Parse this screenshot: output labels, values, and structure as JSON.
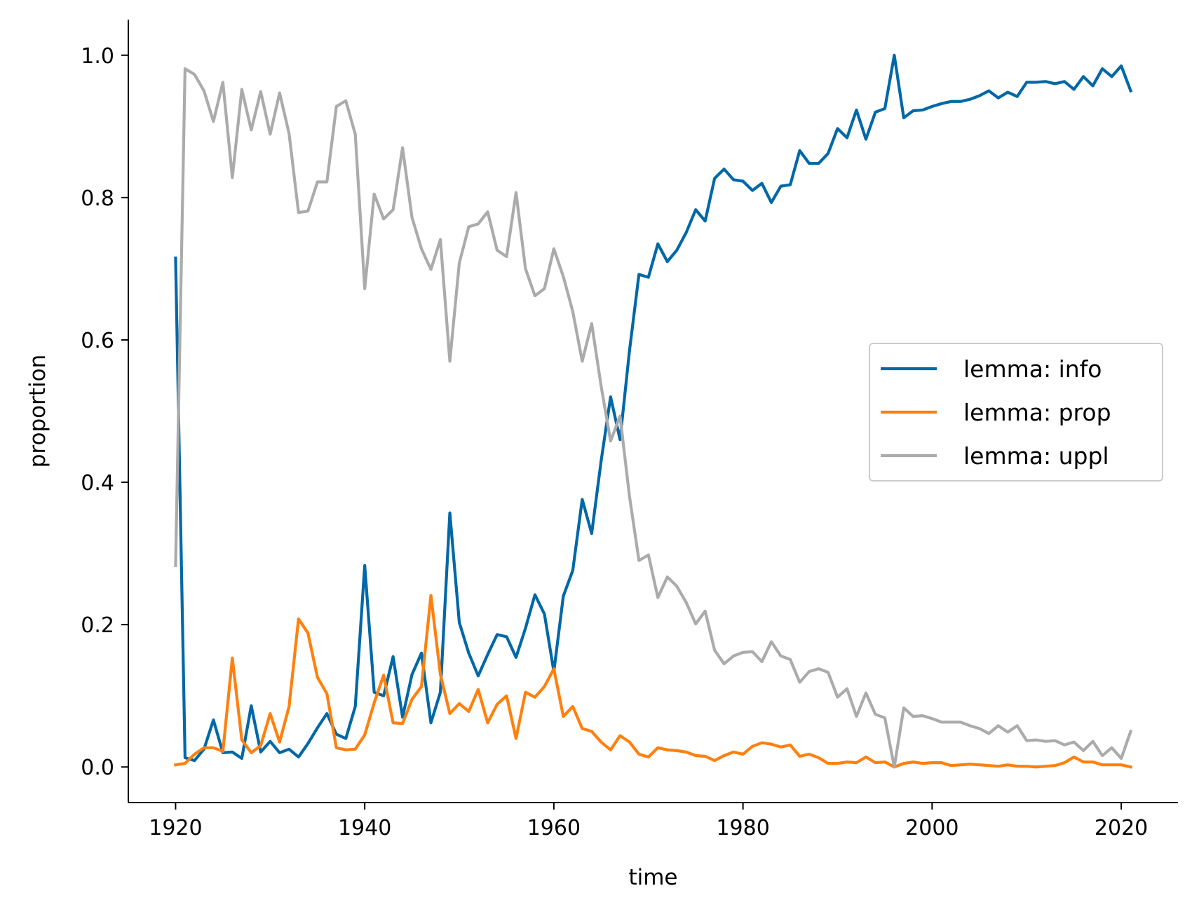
{
  "chart_data": {
    "type": "line",
    "xlabel": "time",
    "ylabel": "proportion",
    "xlim": [
      1915,
      2026
    ],
    "ylim": [
      -0.05,
      1.05
    ],
    "xticks": [
      1920,
      1940,
      1960,
      1980,
      2000,
      2020
    ],
    "yticks": [
      "0.0",
      "0.2",
      "0.4",
      "0.6",
      "0.8",
      "1.0"
    ],
    "grid": false,
    "legend_position": "center-right",
    "x_start": 1920,
    "x_end": 2021,
    "series": [
      {
        "name": "lemma: info",
        "color": "#0068a6",
        "values": [
          0.715,
          0.013,
          0.009,
          0.025,
          0.066,
          0.02,
          0.021,
          0.012,
          0.086,
          0.021,
          0.036,
          0.02,
          0.025,
          0.014,
          0.033,
          0.055,
          0.075,
          0.046,
          0.04,
          0.085,
          0.283,
          0.105,
          0.1,
          0.155,
          0.07,
          0.13,
          0.16,
          0.062,
          0.105,
          0.357,
          0.203,
          0.16,
          0.128,
          0.158,
          0.186,
          0.183,
          0.154,
          0.195,
          0.242,
          0.215,
          0.134,
          0.24,
          0.276,
          0.376,
          0.328,
          0.43,
          0.52,
          0.46,
          0.585,
          0.692,
          0.688,
          0.735,
          0.71,
          0.726,
          0.751,
          0.783,
          0.767,
          0.827,
          0.84,
          0.825,
          0.823,
          0.81,
          0.82,
          0.793,
          0.816,
          0.818,
          0.866,
          0.848,
          0.848,
          0.862,
          0.897,
          0.884,
          0.923,
          0.882,
          0.92,
          0.925,
          1.0,
          0.912,
          0.922,
          0.923,
          0.928,
          0.932,
          0.935,
          0.935,
          0.938,
          0.943,
          0.95,
          0.94,
          0.948,
          0.942,
          0.962,
          0.962,
          0.963,
          0.96,
          0.963,
          0.952,
          0.97,
          0.957,
          0.981,
          0.97,
          0.985,
          0.95
        ]
      },
      {
        "name": "lemma: prop",
        "color": "#ff800e",
        "values": [
          0.003,
          0.005,
          0.018,
          0.027,
          0.027,
          0.022,
          0.153,
          0.038,
          0.02,
          0.03,
          0.075,
          0.035,
          0.085,
          0.208,
          0.188,
          0.126,
          0.103,
          0.027,
          0.024,
          0.025,
          0.045,
          0.09,
          0.129,
          0.062,
          0.061,
          0.095,
          0.113,
          0.241,
          0.13,
          0.075,
          0.089,
          0.078,
          0.109,
          0.062,
          0.088,
          0.1,
          0.04,
          0.105,
          0.098,
          0.113,
          0.138,
          0.071,
          0.085,
          0.054,
          0.05,
          0.035,
          0.024,
          0.044,
          0.035,
          0.018,
          0.014,
          0.027,
          0.024,
          0.023,
          0.021,
          0.016,
          0.015,
          0.009,
          0.016,
          0.021,
          0.018,
          0.029,
          0.034,
          0.032,
          0.028,
          0.031,
          0.015,
          0.018,
          0.013,
          0.005,
          0.005,
          0.007,
          0.006,
          0.014,
          0.006,
          0.007,
          0.0,
          0.005,
          0.007,
          0.005,
          0.006,
          0.006,
          0.002,
          0.003,
          0.004,
          0.003,
          0.002,
          0.001,
          0.003,
          0.001,
          0.001,
          0.0,
          0.001,
          0.002,
          0.006,
          0.014,
          0.007,
          0.007,
          0.003,
          0.003,
          0.003,
          0.0
        ]
      },
      {
        "name": "lemma: uppl",
        "color": "#ababab",
        "values": [
          0.283,
          0.981,
          0.973,
          0.95,
          0.907,
          0.962,
          0.828,
          0.952,
          0.895,
          0.949,
          0.889,
          0.947,
          0.89,
          0.779,
          0.781,
          0.822,
          0.822,
          0.928,
          0.936,
          0.889,
          0.672,
          0.805,
          0.77,
          0.783,
          0.87,
          0.772,
          0.728,
          0.699,
          0.741,
          0.57,
          0.708,
          0.759,
          0.763,
          0.78,
          0.726,
          0.717,
          0.807,
          0.7,
          0.662,
          0.672,
          0.728,
          0.689,
          0.64,
          0.57,
          0.623,
          0.535,
          0.458,
          0.493,
          0.38,
          0.29,
          0.298,
          0.238,
          0.267,
          0.254,
          0.231,
          0.201,
          0.219,
          0.164,
          0.145,
          0.156,
          0.161,
          0.162,
          0.148,
          0.176,
          0.156,
          0.151,
          0.119,
          0.134,
          0.138,
          0.133,
          0.098,
          0.11,
          0.071,
          0.104,
          0.074,
          0.069,
          0.0,
          0.083,
          0.071,
          0.072,
          0.068,
          0.063,
          0.063,
          0.063,
          0.058,
          0.054,
          0.047,
          0.058,
          0.049,
          0.058,
          0.037,
          0.038,
          0.036,
          0.037,
          0.031,
          0.035,
          0.023,
          0.036,
          0.016,
          0.027,
          0.012,
          0.05
        ]
      }
    ]
  }
}
